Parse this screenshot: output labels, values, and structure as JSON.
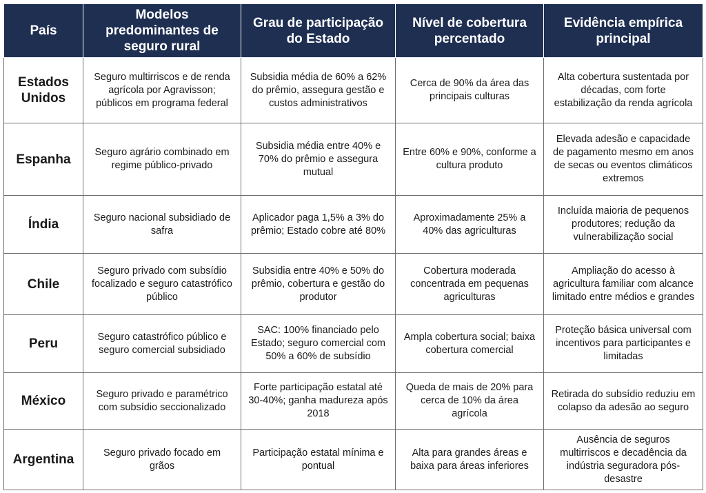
{
  "table": {
    "headers": [
      "País",
      "Modelos predominantes de seguro rural",
      "Grau de participação do Estado",
      "Nível de cobertura percentado",
      "Evidência empírica principal"
    ],
    "rows": [
      {
        "country": "Estados Unidos",
        "models": "Seguro multirriscos e de renda agrícola por Agravisson; públicos em programa federal",
        "state": "Subsidia média de 60% a 62% do prêmio, assegura gestão e custos administrativos",
        "coverage": "Cerca de 90% da área das principais culturas",
        "evidence": "Alta cobertura sustentada por décadas, com forte estabilização da renda agrícola"
      },
      {
        "country": "Espanha",
        "models": "Seguro agrário combinado em regime público-privado",
        "state": "Subsidia média entre 40% e 70% do prêmio e assegura mutual",
        "coverage": "Entre 60% e 90%, conforme a cultura produto",
        "evidence": "Elevada adesão e capacidade de pagamento mesmo em anos de secas ou eventos climáticos extremos"
      },
      {
        "country": "Índia",
        "models": "Seguro nacional subsidiado de safra",
        "state": "Aplicador paga 1,5% a 3% do prêmio; Estado cobre até 80%",
        "coverage": "Aproximadamente 25% a 40% das agriculturas",
        "evidence": "Incluída maioria de pequenos produtores; redução da vulnerabilização social"
      },
      {
        "country": "Chile",
        "models": "Seguro privado com subsídio focalizado e seguro catastrófico público",
        "state": "Subsidia entre 40% e 50% do prêmio, cobertura e gestão do produtor",
        "coverage": "Cobertura moderada concentrada em pequenas agriculturas",
        "evidence": "Ampliação do acesso à agricultura familiar com alcance limitado entre médios e grandes"
      },
      {
        "country": "Peru",
        "models": "Seguro catastrófico público e seguro comercial subsidiado",
        "state": "SAC: 100% financiado pelo Estado; seguro comercial com 50% a 60% de subsídio",
        "coverage": "Ampla cobertura social; baixa cobertura comercial",
        "evidence": "Proteção básica universal com incentivos para participantes e limitadas"
      },
      {
        "country": "México",
        "models": "Seguro privado e paramétrico com subsídio seccionalizado",
        "state": "Forte participação estatal até 30-40%; ganha madureza após 2018",
        "coverage": "Queda de mais de 20% para cerca de 10% da área agrícola",
        "evidence": "Retirada do subsídio reduziu em colapso da adesão ao seguro"
      },
      {
        "country": "Argentina",
        "models": "Seguro privado focado em grãos",
        "state": "Participação estatal mínima e pontual",
        "coverage": "Alta para grandes áreas e baixa para áreas inferiores",
        "evidence": "Ausência de seguros multirriscos e decadência da indústria seguradora pós-desastre"
      }
    ]
  }
}
